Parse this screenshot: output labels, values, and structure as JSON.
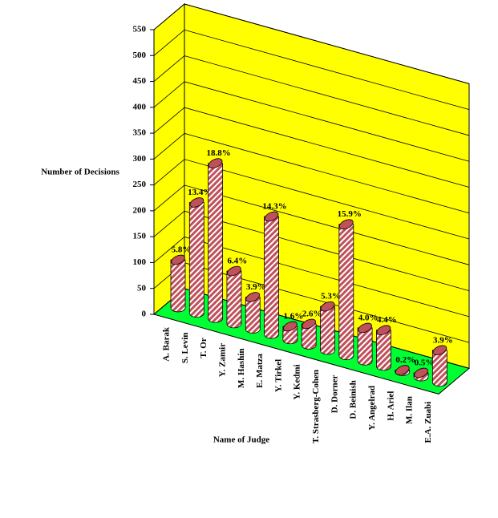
{
  "chart_data": {
    "type": "bar3d",
    "y_label": "Number of Decisions",
    "x_label": "Name of Judge",
    "categories": [
      "A. Barak",
      "S. Levin",
      "T. Or",
      "Y. Zamir",
      "M. Hashin",
      "E. Matza",
      "Y. Tirkel",
      "Y. Kedmi",
      "T. Strasberg-Cohen",
      "D. Dorner",
      "D. Beinish",
      "Y. Angelrad",
      "H. Ariel",
      "M. Ilan",
      "E.A. Zuabi"
    ],
    "values": [
      93,
      214,
      300,
      102,
      62,
      228,
      26,
      41,
      85,
      254,
      64,
      70,
      3,
      8,
      62
    ],
    "percent_labels": [
      "5.8%",
      "13.4%",
      "18.8%",
      "6.4%",
      "3.9%",
      "14.3%",
      "1.6%",
      "2.6%",
      "5.3%",
      "15.9%",
      "4.0%",
      "4.4%",
      "0.2%",
      "0.5%",
      "3.9%"
    ],
    "color": "#c0505a",
    "wall_color": "#ffff00",
    "floor_color": "#00ff33",
    "ylim": [
      0,
      550
    ],
    "yticks": [
      0,
      50,
      100,
      150,
      200,
      250,
      300,
      350,
      400,
      450,
      500,
      550
    ],
    "grid": true
  }
}
